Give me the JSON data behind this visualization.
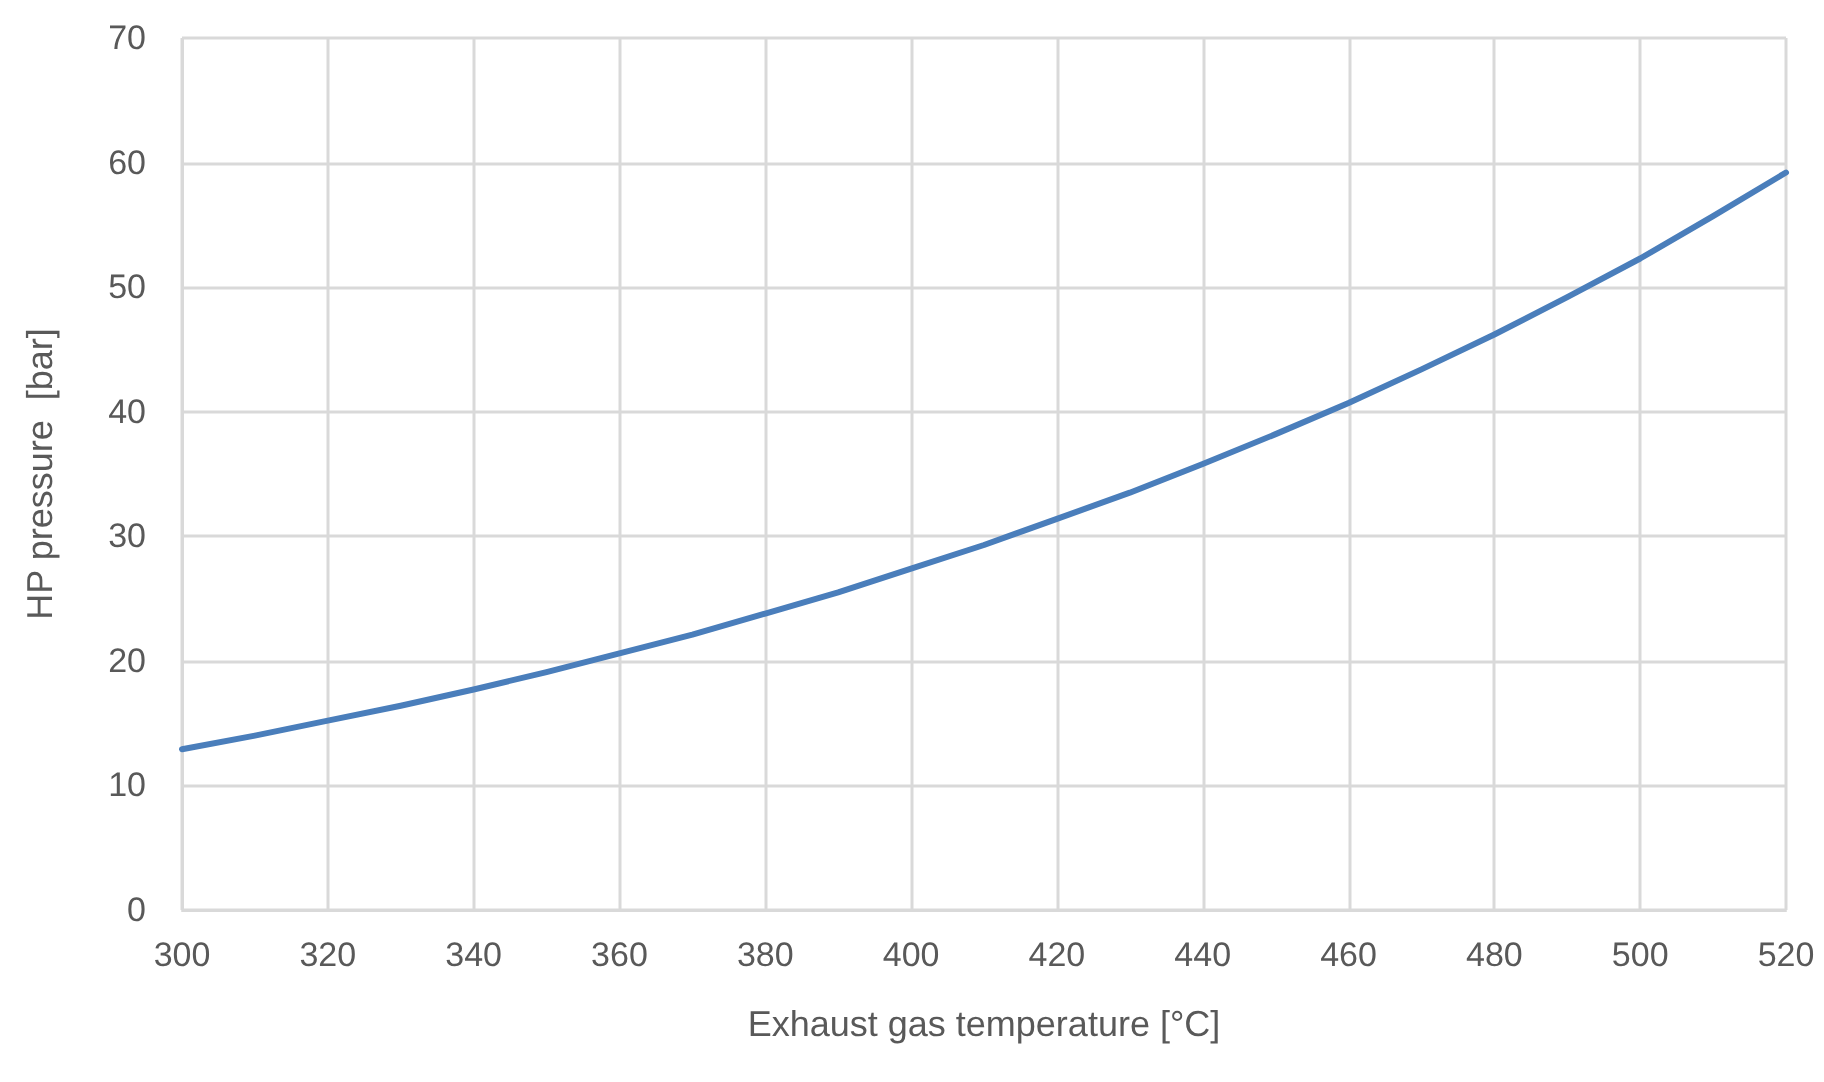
{
  "chart_data": {
    "type": "line",
    "xlabel": "Exhaust gas temperature [°C]",
    "ylabel": "HP pressure  [bar]",
    "x": [
      300,
      310,
      320,
      330,
      340,
      350,
      360,
      370,
      380,
      390,
      400,
      410,
      420,
      430,
      440,
      450,
      460,
      470,
      480,
      490,
      500,
      510,
      520
    ],
    "series": [
      {
        "color": "#4a7ebb",
        "values": [
          12.9,
          14.0,
          15.2,
          16.4,
          17.7,
          19.1,
          20.6,
          22.1,
          23.8,
          25.5,
          27.4,
          29.3,
          31.4,
          33.5,
          35.8,
          38.2,
          40.7,
          43.4,
          46.2,
          49.2,
          52.3,
          55.7,
          59.2
        ]
      }
    ],
    "xlim": [
      300,
      520
    ],
    "xticks": [
      300,
      320,
      340,
      360,
      380,
      400,
      420,
      440,
      460,
      480,
      500,
      520
    ],
    "ylim": [
      0,
      70
    ],
    "yticks": [
      0,
      10,
      20,
      30,
      40,
      50,
      60,
      70
    ],
    "grid": true,
    "marker": "none",
    "line_style": "solid"
  }
}
